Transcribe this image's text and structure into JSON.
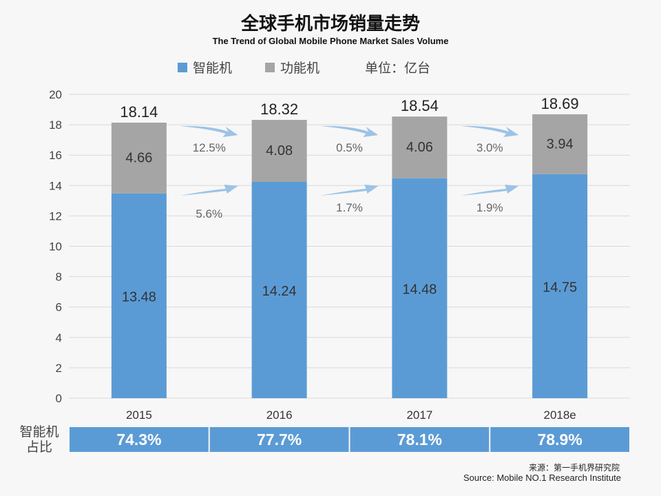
{
  "chart_data": {
    "type": "bar",
    "stacked": true,
    "title": "全球手机市场销量走势",
    "subtitle": "The Trend of Global Mobile Phone Market Sales Volume",
    "unit_label": "单位：亿台",
    "categories": [
      "2015",
      "2016",
      "2017",
      "2018e"
    ],
    "series": [
      {
        "name": "智能机",
        "values": [
          13.48,
          14.24,
          14.48,
          14.75
        ],
        "color": "#5b9bd5"
      },
      {
        "name": "功能机",
        "values": [
          4.66,
          4.08,
          4.06,
          3.94
        ],
        "color": "#a5a5a5"
      }
    ],
    "totals": [
      "18.14",
      "18.32",
      "18.54",
      "18.69"
    ],
    "yticks": [
      0,
      2,
      4,
      6,
      8,
      10,
      12,
      14,
      16,
      18,
      20
    ],
    "ylim": [
      0,
      20
    ],
    "grid": true,
    "legend_position": "top",
    "growth_annotations": {
      "feature_phone": [
        "12.5%",
        "0.5%",
        "3.0%"
      ],
      "smartphone": [
        "5.6%",
        "1.7%",
        "1.9%"
      ]
    },
    "share_row": {
      "label_line1": "智能机",
      "label_line2": "占比",
      "values": [
        "74.3%",
        "77.7%",
        "78.1%",
        "78.9%"
      ]
    },
    "source_cn": "来源：第一手机界研究院",
    "source_en": "Source: Mobile NO.1 Research Institute"
  }
}
